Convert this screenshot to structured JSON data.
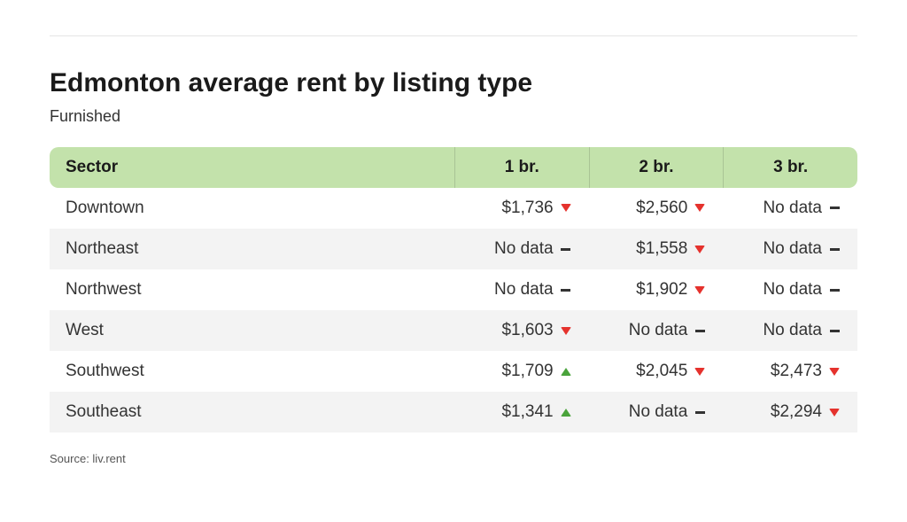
{
  "title": "Edmonton average rent by listing type",
  "subtitle": "Furnished",
  "table": {
    "header_bg": "#c3e2ab",
    "row_even_bg": "#f3f3f3",
    "row_odd_bg": "#ffffff",
    "up_color": "#4aa33b",
    "down_color": "#e5322d",
    "no_data_text": "No data",
    "columns": {
      "sector": "Sector",
      "br1": "1 br.",
      "br2": "2 br.",
      "br3": "3 br."
    },
    "rows": [
      {
        "sector": "Downtown",
        "br1": {
          "value": "$1,736",
          "trend": "down"
        },
        "br2": {
          "value": "$2,560",
          "trend": "down"
        },
        "br3": {
          "value": "No data",
          "trend": "none"
        }
      },
      {
        "sector": "Northeast",
        "br1": {
          "value": "No data",
          "trend": "none"
        },
        "br2": {
          "value": "$1,558",
          "trend": "down"
        },
        "br3": {
          "value": "No data",
          "trend": "none"
        }
      },
      {
        "sector": "Northwest",
        "br1": {
          "value": "No data",
          "trend": "none"
        },
        "br2": {
          "value": "$1,902",
          "trend": "down"
        },
        "br3": {
          "value": "No data",
          "trend": "none"
        }
      },
      {
        "sector": "West",
        "br1": {
          "value": "$1,603",
          "trend": "down"
        },
        "br2": {
          "value": "No data",
          "trend": "none"
        },
        "br3": {
          "value": "No data",
          "trend": "none"
        }
      },
      {
        "sector": "Southwest",
        "br1": {
          "value": "$1,709",
          "trend": "up"
        },
        "br2": {
          "value": "$2,045",
          "trend": "down"
        },
        "br3": {
          "value": "$2,473",
          "trend": "down"
        }
      },
      {
        "sector": "Southeast",
        "br1": {
          "value": "$1,341",
          "trend": "up"
        },
        "br2": {
          "value": "No data",
          "trend": "none"
        },
        "br3": {
          "value": "$2,294",
          "trend": "down"
        }
      }
    ]
  },
  "source_label": "Source: liv.rent"
}
